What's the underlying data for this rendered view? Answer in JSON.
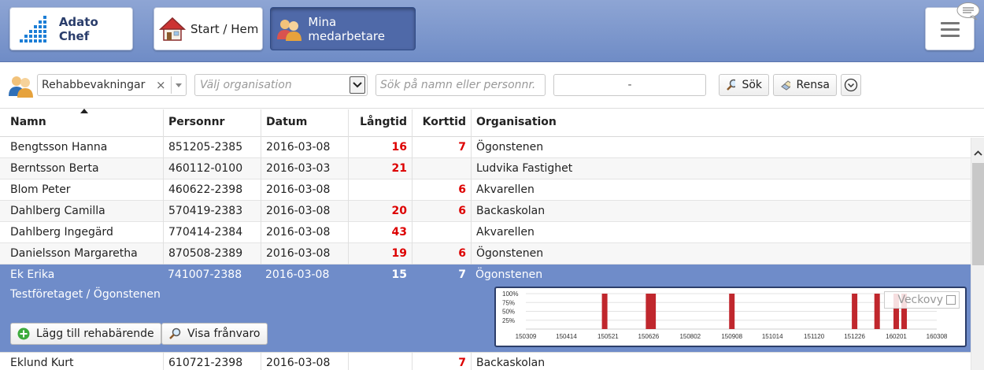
{
  "header": {
    "logo_label": "Adato Chef",
    "start_label": "Start / Hem",
    "staff_label": "Mina medarbetare"
  },
  "toolbar": {
    "filter_value": "Rehabbevakningar",
    "clear_symbol": "×",
    "org_placeholder": "Välj organisation",
    "search_placeholder": "Sök på namn eller personnr.",
    "date_range": "-",
    "search_label": "Sök",
    "clear_label": "Rensa"
  },
  "table": {
    "columns": [
      "Namn",
      "Personnr",
      "Datum",
      "Långtid",
      "Korttid",
      "Organisation"
    ],
    "rows": [
      {
        "name": "Bengtsson Hanna",
        "pnr": "851205-2385",
        "date": "2016-03-08",
        "long": "16",
        "short": "7",
        "org": "Ögonstenen"
      },
      {
        "name": "Berntsson Berta",
        "pnr": "460112-0100",
        "date": "2016-03-03",
        "long": "21",
        "short": "",
        "org": "Ludvika Fastighet"
      },
      {
        "name": "Blom Peter",
        "pnr": "460622-2398",
        "date": "2016-03-08",
        "long": "",
        "short": "6",
        "org": "Akvarellen"
      },
      {
        "name": "Dahlberg Camilla",
        "pnr": "570419-2383",
        "date": "2016-03-08",
        "long": "20",
        "short": "6",
        "org": "Backaskolan"
      },
      {
        "name": "Dahlberg Ingegärd",
        "pnr": "770414-2384",
        "date": "2016-03-08",
        "long": "43",
        "short": "",
        "org": "Akvarellen"
      },
      {
        "name": "Danielsson Margaretha",
        "pnr": "870508-2389",
        "date": "2016-03-08",
        "long": "19",
        "short": "6",
        "org": "Ögonstenen"
      }
    ],
    "selected": {
      "name": "Ek Erika",
      "pnr": "741007-2388",
      "date": "2016-03-08",
      "long": "15",
      "short": "7",
      "org": "Ögonstenen",
      "subtitle": "Testföretaget / Ögonstenen",
      "add_rehab_label": "Lägg till rehabärende",
      "show_absence_label": "Visa frånvaro",
      "weekly_label": "Veckovy"
    },
    "last_row": {
      "name": "Eklund Kurt",
      "pnr": "610721-2398",
      "date": "2016-03-08",
      "long": "",
      "short": "7",
      "org": "Backaskolan"
    }
  },
  "chart_data": {
    "type": "bar",
    "title": "",
    "xlabel": "",
    "ylabel": "",
    "y_ticks": [
      "100%",
      "75%",
      "50%",
      "25%"
    ],
    "x_ticks": [
      "150309",
      "150414",
      "150521",
      "150626",
      "150802",
      "150908",
      "151014",
      "151120",
      "151226",
      "160201",
      "160308"
    ],
    "ylim": [
      0,
      100
    ],
    "bar_color": "#c0272d",
    "bars": [
      {
        "x": "150518",
        "value": 100
      },
      {
        "x": "150626",
        "value": 100
      },
      {
        "x": "150630",
        "value": 100
      },
      {
        "x": "150908",
        "value": 100
      },
      {
        "x": "151226",
        "value": 100
      },
      {
        "x": "160115",
        "value": 100
      },
      {
        "x": "160201",
        "value": 100
      },
      {
        "x": "160208",
        "value": 100
      }
    ]
  },
  "colors": {
    "header_bg": "#7f98cd",
    "selected_row_bg": "#6f8cc9",
    "negative_number": "#dd0000"
  }
}
